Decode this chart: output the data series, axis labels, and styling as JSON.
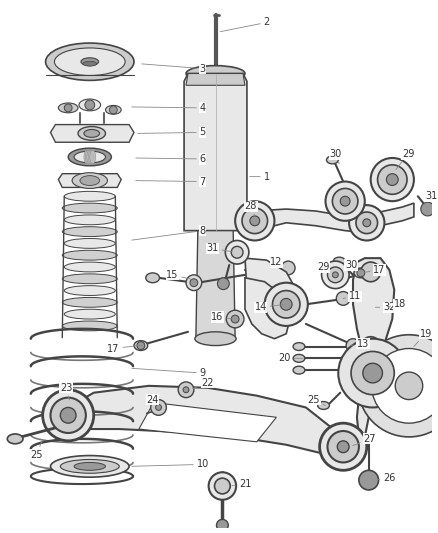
{
  "bg_color": "#ffffff",
  "line_color": "#444444",
  "fill_light": "#e8e8e8",
  "fill_mid": "#cccccc",
  "fill_dark": "#999999",
  "fig_width": 4.38,
  "fig_height": 5.33,
  "dpi": 100,
  "label_fs": 7,
  "label_color": "#333333",
  "leader_color": "#888888"
}
